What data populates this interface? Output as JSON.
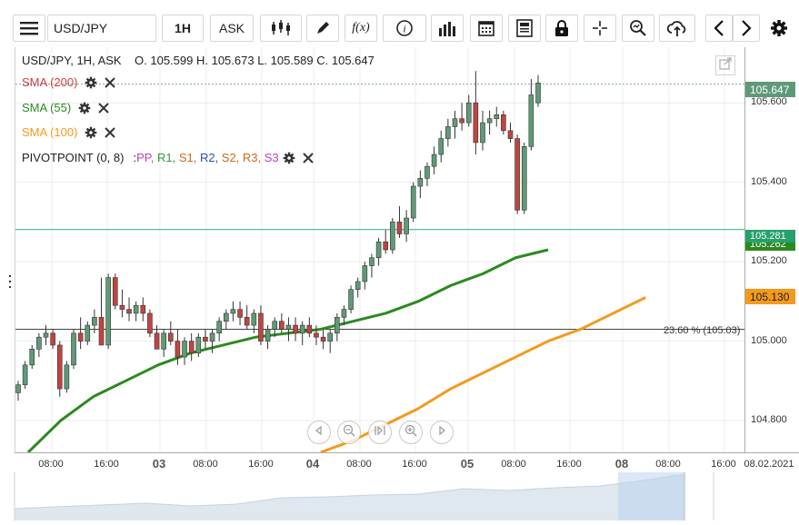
{
  "toolbar": {
    "menu_icon": "hamburger-icon",
    "symbol": "USD/JPY",
    "timeframe": "1H",
    "price_type": "ASK",
    "buttons": [
      "candle-type-icon",
      "pencil-icon",
      "fx-icon",
      "info-icon",
      "bars-icon",
      "calendar-icon",
      "news-icon",
      "lock-icon",
      "crosshair-icon",
      "zoom-icon",
      "cloud-upload-icon",
      "chevron-left-icon",
      "chevron-right-icon",
      "gear-icon"
    ]
  },
  "legend": {
    "ohlc": "USD/JPY, 1H, ASK    O. 105.599 H. 105.673 L. 105.589 C. 105.647",
    "sma200": "SMA (200)",
    "sma55": "SMA (55)",
    "sma100": "SMA (100)",
    "pivot_label": "PIVOTPOINT (0, 8)",
    "pivot_sep": ":",
    "pivot_items": [
      {
        "text": "PP,",
        "color": "#c03cc0"
      },
      {
        "text": "R1,",
        "color": "#2e9e2e"
      },
      {
        "text": "S1,",
        "color": "#c46a1a"
      },
      {
        "text": "R2,",
        "color": "#2a4fb0"
      },
      {
        "text": "S2,",
        "color": "#c46a1a"
      },
      {
        "text": "R3,",
        "color": "#c46a1a"
      },
      {
        "text": "S3",
        "color": "#c03cc0"
      }
    ]
  },
  "colors": {
    "sma200": "#d03c3c",
    "sma55": "#2b8a1f",
    "sma100": "#f39a1c",
    "bull": "#5f9a76",
    "bear": "#c0453f",
    "last_price": "#5f9a76",
    "pivot_line": "#3bbf8a"
  },
  "price_tags": {
    "last": "105.647",
    "pivot": "105.281",
    "sma55": "105.262",
    "sma100": "105.130"
  },
  "fib_label": "23.60 % (105.03)",
  "chart_data": {
    "type": "candlestick",
    "ylim": [
      104.72,
      105.74
    ],
    "yticks": [
      "105.600",
      "105.400",
      "105.200",
      "105.000",
      "104.800"
    ],
    "yvals": [
      105.6,
      105.4,
      105.2,
      105.0,
      104.8
    ],
    "xticks": [
      {
        "label": "08:00",
        "bold": false
      },
      {
        "label": "16:00",
        "bold": false
      },
      {
        "label": "03",
        "bold": true
      },
      {
        "label": "08:00",
        "bold": false
      },
      {
        "label": "16:00",
        "bold": false
      },
      {
        "label": "04",
        "bold": true
      },
      {
        "label": "08:00",
        "bold": false
      },
      {
        "label": "16:00",
        "bold": false
      },
      {
        "label": "05",
        "bold": true
      },
      {
        "label": "08:00",
        "bold": false
      },
      {
        "label": "16:00",
        "bold": false
      },
      {
        "label": "08",
        "bold": true
      },
      {
        "label": "08:00",
        "bold": false
      },
      {
        "label": "16:00",
        "bold": false
      },
      {
        "label": "08.02.2021",
        "bold": false
      }
    ],
    "candles": [
      [
        104.87,
        104.9,
        104.85,
        104.89
      ],
      [
        104.89,
        104.95,
        104.88,
        104.94
      ],
      [
        104.94,
        104.99,
        104.93,
        104.98
      ],
      [
        104.98,
        105.02,
        104.96,
        105.01
      ],
      [
        105.01,
        105.04,
        104.99,
        105.02
      ],
      [
        105.02,
        105.03,
        104.98,
        104.99
      ],
      [
        104.99,
        105.0,
        104.86,
        104.88
      ],
      [
        104.88,
        104.95,
        104.87,
        104.94
      ],
      [
        104.94,
        105.03,
        104.93,
        105.02
      ],
      [
        105.02,
        105.06,
        104.98,
        105.0
      ],
      [
        105.0,
        105.05,
        104.99,
        105.04
      ],
      [
        105.04,
        105.08,
        105.02,
        105.06
      ],
      [
        105.06,
        105.16,
        104.99,
        104.99
      ],
      [
        104.99,
        105.17,
        104.98,
        105.16
      ],
      [
        105.16,
        105.17,
        105.08,
        105.09
      ],
      [
        105.09,
        105.13,
        105.06,
        105.08
      ],
      [
        105.08,
        105.11,
        105.05,
        105.07
      ],
      [
        105.07,
        105.1,
        105.05,
        105.09
      ],
      [
        105.09,
        105.11,
        105.05,
        105.07
      ],
      [
        105.07,
        105.08,
        105.01,
        105.02
      ],
      [
        105.02,
        105.04,
        104.98,
        104.98
      ],
      [
        104.98,
        105.03,
        104.96,
        105.02
      ],
      [
        105.02,
        105.05,
        104.99,
        105.0
      ],
      [
        105.0,
        105.03,
        104.94,
        104.96
      ],
      [
        104.96,
        105.01,
        104.94,
        105.0
      ],
      [
        105.0,
        105.02,
        104.95,
        104.97
      ],
      [
        104.97,
        105.02,
        104.96,
        105.01
      ],
      [
        105.01,
        105.03,
        104.98,
        105.0
      ],
      [
        105.0,
        105.03,
        104.97,
        105.02
      ],
      [
        105.02,
        105.06,
        105.0,
        105.05
      ],
      [
        105.05,
        105.08,
        105.03,
        105.07
      ],
      [
        105.07,
        105.1,
        105.05,
        105.08
      ],
      [
        105.08,
        105.1,
        105.04,
        105.06
      ],
      [
        105.06,
        105.09,
        105.03,
        105.04
      ],
      [
        105.04,
        105.08,
        105.02,
        105.07
      ],
      [
        105.07,
        105.09,
        104.99,
        105.0
      ],
      [
        105.0,
        105.04,
        104.98,
        105.03
      ],
      [
        105.03,
        105.06,
        105.01,
        105.05
      ],
      [
        105.05,
        105.07,
        105.02,
        105.03
      ],
      [
        105.03,
        105.06,
        105.0,
        105.04
      ],
      [
        105.04,
        105.06,
        105.0,
        105.02
      ],
      [
        105.02,
        105.05,
        104.99,
        105.04
      ],
      [
        105.04,
        105.06,
        105.01,
        105.02
      ],
      [
        105.02,
        105.04,
        104.99,
        105.01
      ],
      [
        105.01,
        105.03,
        104.98,
        105.0
      ],
      [
        105.0,
        105.03,
        104.97,
        105.02
      ],
      [
        105.02,
        105.07,
        105.0,
        105.06
      ],
      [
        105.06,
        105.09,
        105.04,
        105.08
      ],
      [
        105.08,
        105.14,
        105.07,
        105.13
      ],
      [
        105.13,
        105.16,
        105.11,
        105.15
      ],
      [
        105.15,
        105.2,
        105.13,
        105.19
      ],
      [
        105.19,
        105.22,
        105.16,
        105.21
      ],
      [
        105.21,
        105.26,
        105.19,
        105.25
      ],
      [
        105.25,
        105.28,
        105.22,
        105.23
      ],
      [
        105.23,
        105.31,
        105.22,
        105.3
      ],
      [
        105.3,
        105.34,
        105.26,
        105.27
      ],
      [
        105.27,
        105.33,
        105.25,
        105.31
      ],
      [
        105.31,
        105.4,
        105.3,
        105.39
      ],
      [
        105.39,
        105.43,
        105.36,
        105.41
      ],
      [
        105.41,
        105.45,
        105.39,
        105.44
      ],
      [
        105.44,
        105.49,
        105.42,
        105.47
      ],
      [
        105.47,
        105.53,
        105.45,
        105.51
      ],
      [
        105.51,
        105.56,
        105.49,
        105.54
      ],
      [
        105.54,
        105.58,
        105.51,
        105.56
      ],
      [
        105.56,
        105.6,
        105.53,
        105.55
      ],
      [
        105.55,
        105.62,
        105.54,
        105.6
      ],
      [
        105.6,
        105.68,
        105.47,
        105.5
      ],
      [
        105.5,
        105.58,
        105.48,
        105.55
      ],
      [
        105.55,
        105.58,
        105.52,
        105.56
      ],
      [
        105.56,
        105.59,
        105.54,
        105.57
      ],
      [
        105.57,
        105.58,
        105.52,
        105.53
      ],
      [
        105.53,
        105.55,
        105.5,
        105.51
      ],
      [
        105.51,
        105.52,
        105.32,
        105.33
      ],
      [
        105.33,
        105.5,
        105.32,
        105.49
      ],
      [
        105.49,
        105.66,
        105.48,
        105.62
      ],
      [
        105.6,
        105.67,
        105.59,
        105.65
      ]
    ],
    "sma55": [
      [
        0,
        104.72
      ],
      [
        20,
        104.8
      ],
      [
        40,
        104.86
      ],
      [
        60,
        104.9
      ],
      [
        80,
        104.94
      ],
      [
        100,
        104.97
      ],
      [
        120,
        104.99
      ],
      [
        140,
        105.01
      ],
      [
        160,
        105.02
      ],
      [
        180,
        105.03
      ],
      [
        200,
        105.05
      ],
      [
        220,
        105.07
      ],
      [
        240,
        105.1
      ],
      [
        260,
        105.14
      ],
      [
        280,
        105.17
      ],
      [
        300,
        105.21
      ],
      [
        320,
        105.23
      ]
    ],
    "sma100": [
      [
        180,
        104.72
      ],
      [
        200,
        104.75
      ],
      [
        220,
        104.79
      ],
      [
        240,
        104.83
      ],
      [
        260,
        104.88
      ],
      [
        280,
        104.92
      ],
      [
        300,
        104.96
      ],
      [
        320,
        105.0
      ],
      [
        340,
        105.03
      ],
      [
        360,
        105.07
      ],
      [
        380,
        105.11
      ]
    ],
    "pivot": 105.281,
    "fib": 105.03,
    "last": 105.647
  }
}
